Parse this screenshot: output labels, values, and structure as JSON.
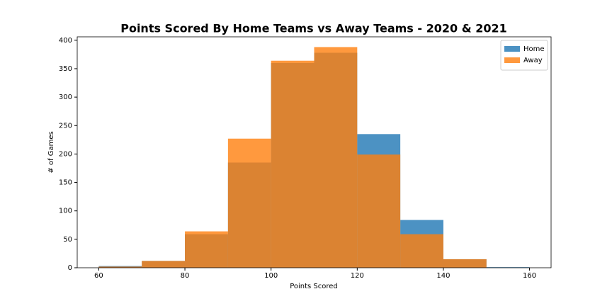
{
  "chart_data": {
    "type": "histogram",
    "title": "Points Scored By Home Teams vs Away Teams - 2020 & 2021",
    "x_label": "Points Scored",
    "y_label": "# of Games",
    "bins": [
      60,
      70,
      80,
      90,
      100,
      110,
      120,
      130,
      140,
      150,
      160
    ],
    "series": [
      {
        "name": "Home",
        "color": "#1f77b4",
        "values": [
          3,
          12,
          59,
          185,
          360,
          378,
          235,
          84,
          15,
          1
        ]
      },
      {
        "name": "Away",
        "color": "#ff7f0e",
        "values": [
          2,
          12,
          64,
          227,
          364,
          388,
          199,
          59,
          15,
          0
        ]
      }
    ],
    "alpha": 0.8,
    "xlim": [
      55,
      165
    ],
    "ylim": [
      0,
      406
    ],
    "xticks": [
      60,
      80,
      100,
      120,
      140,
      160
    ],
    "yticks": [
      0,
      50,
      100,
      150,
      200,
      250,
      300,
      350,
      400
    ],
    "legend": "upper right"
  }
}
